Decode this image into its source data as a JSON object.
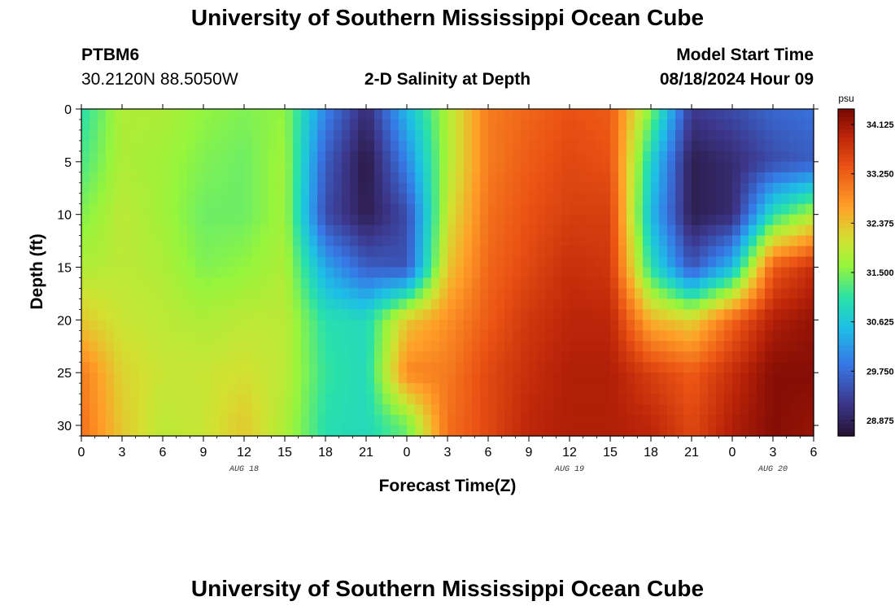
{
  "header": {
    "title": "University of Southern Mississippi Ocean Cube",
    "station": "PTBM6",
    "coords": "30.2120N  88.5050W",
    "plot_title": "2-D Salinity at Depth",
    "model_start_label": "Model Start Time",
    "model_start_value": "08/18/2024 Hour 09"
  },
  "footer": {
    "title": "University of Southern Mississippi Ocean Cube"
  },
  "chart_data": {
    "type": "heatmap",
    "title": "2-D Salinity at Depth",
    "xlabel": "Forecast Time(Z)",
    "ylabel": "Depth (ft)",
    "x_tick_labels": [
      "0",
      "3",
      "6",
      "9",
      "12",
      "15",
      "18",
      "21",
      "0",
      "3",
      "6",
      "9",
      "12",
      "15",
      "18",
      "21",
      "0",
      "3",
      "6"
    ],
    "x_range_hours": [
      0,
      54
    ],
    "y_ticks": [
      0,
      5,
      10,
      15,
      20,
      25,
      30
    ],
    "y_range": [
      0,
      31
    ],
    "y_inverted": true,
    "date_labels": [
      {
        "text": "AUG 18",
        "hour": 12
      },
      {
        "text": "AUG 19",
        "hour": 36
      },
      {
        "text": "AUG 20",
        "hour": 51
      }
    ],
    "colorbar": {
      "units": "psu",
      "min": 28.6,
      "max": 34.4,
      "ticks": [
        "34.125",
        "33.250",
        "32.375",
        "31.500",
        "30.625",
        "29.750",
        "28.875"
      ],
      "tick_values": [
        34.125,
        33.25,
        32.375,
        31.5,
        30.625,
        29.75,
        28.875
      ]
    },
    "depths": [
      0,
      5,
      10,
      15,
      20,
      25,
      30
    ],
    "hours": [
      0,
      3,
      6,
      9,
      12,
      15,
      18,
      21,
      24,
      27,
      30,
      33,
      36,
      39,
      42,
      45,
      48,
      51,
      54
    ],
    "salinity": [
      [
        31.0,
        31.8,
        31.8,
        31.6,
        31.5,
        31.6,
        30.0,
        29.0,
        30.5,
        31.8,
        33.0,
        33.2,
        33.4,
        33.3,
        31.5,
        29.2,
        29.4,
        29.7,
        29.8
      ],
      [
        31.2,
        31.8,
        31.7,
        31.5,
        31.4,
        31.7,
        29.6,
        28.7,
        30.0,
        31.8,
        33.0,
        33.3,
        33.5,
        33.4,
        30.8,
        28.8,
        29.0,
        29.4,
        29.6
      ],
      [
        31.5,
        31.9,
        31.7,
        31.4,
        31.4,
        31.7,
        29.4,
        28.8,
        29.4,
        32.0,
        33.1,
        33.4,
        33.6,
        33.6,
        30.5,
        28.8,
        29.0,
        31.0,
        31.8
      ],
      [
        31.8,
        31.9,
        31.8,
        31.5,
        31.6,
        31.8,
        30.3,
        29.6,
        29.5,
        32.3,
        33.2,
        33.5,
        33.8,
        33.7,
        31.0,
        29.5,
        30.5,
        33.3,
        33.8
      ],
      [
        32.3,
        32.0,
        31.9,
        31.8,
        31.9,
        31.9,
        31.0,
        30.9,
        32.3,
        32.8,
        33.3,
        33.7,
        33.9,
        33.9,
        32.5,
        32.2,
        33.2,
        34.0,
        34.2
      ],
      [
        33.0,
        32.2,
        32.0,
        32.0,
        32.1,
        31.9,
        31.1,
        30.9,
        32.9,
        33.0,
        33.5,
        33.8,
        34.0,
        34.0,
        33.6,
        33.3,
        33.8,
        34.3,
        34.3
      ],
      [
        33.1,
        32.3,
        31.9,
        32.0,
        32.3,
        31.8,
        31.0,
        30.9,
        31.4,
        33.1,
        33.5,
        33.9,
        34.0,
        34.0,
        33.9,
        33.5,
        34.0,
        34.3,
        34.2
      ]
    ]
  }
}
